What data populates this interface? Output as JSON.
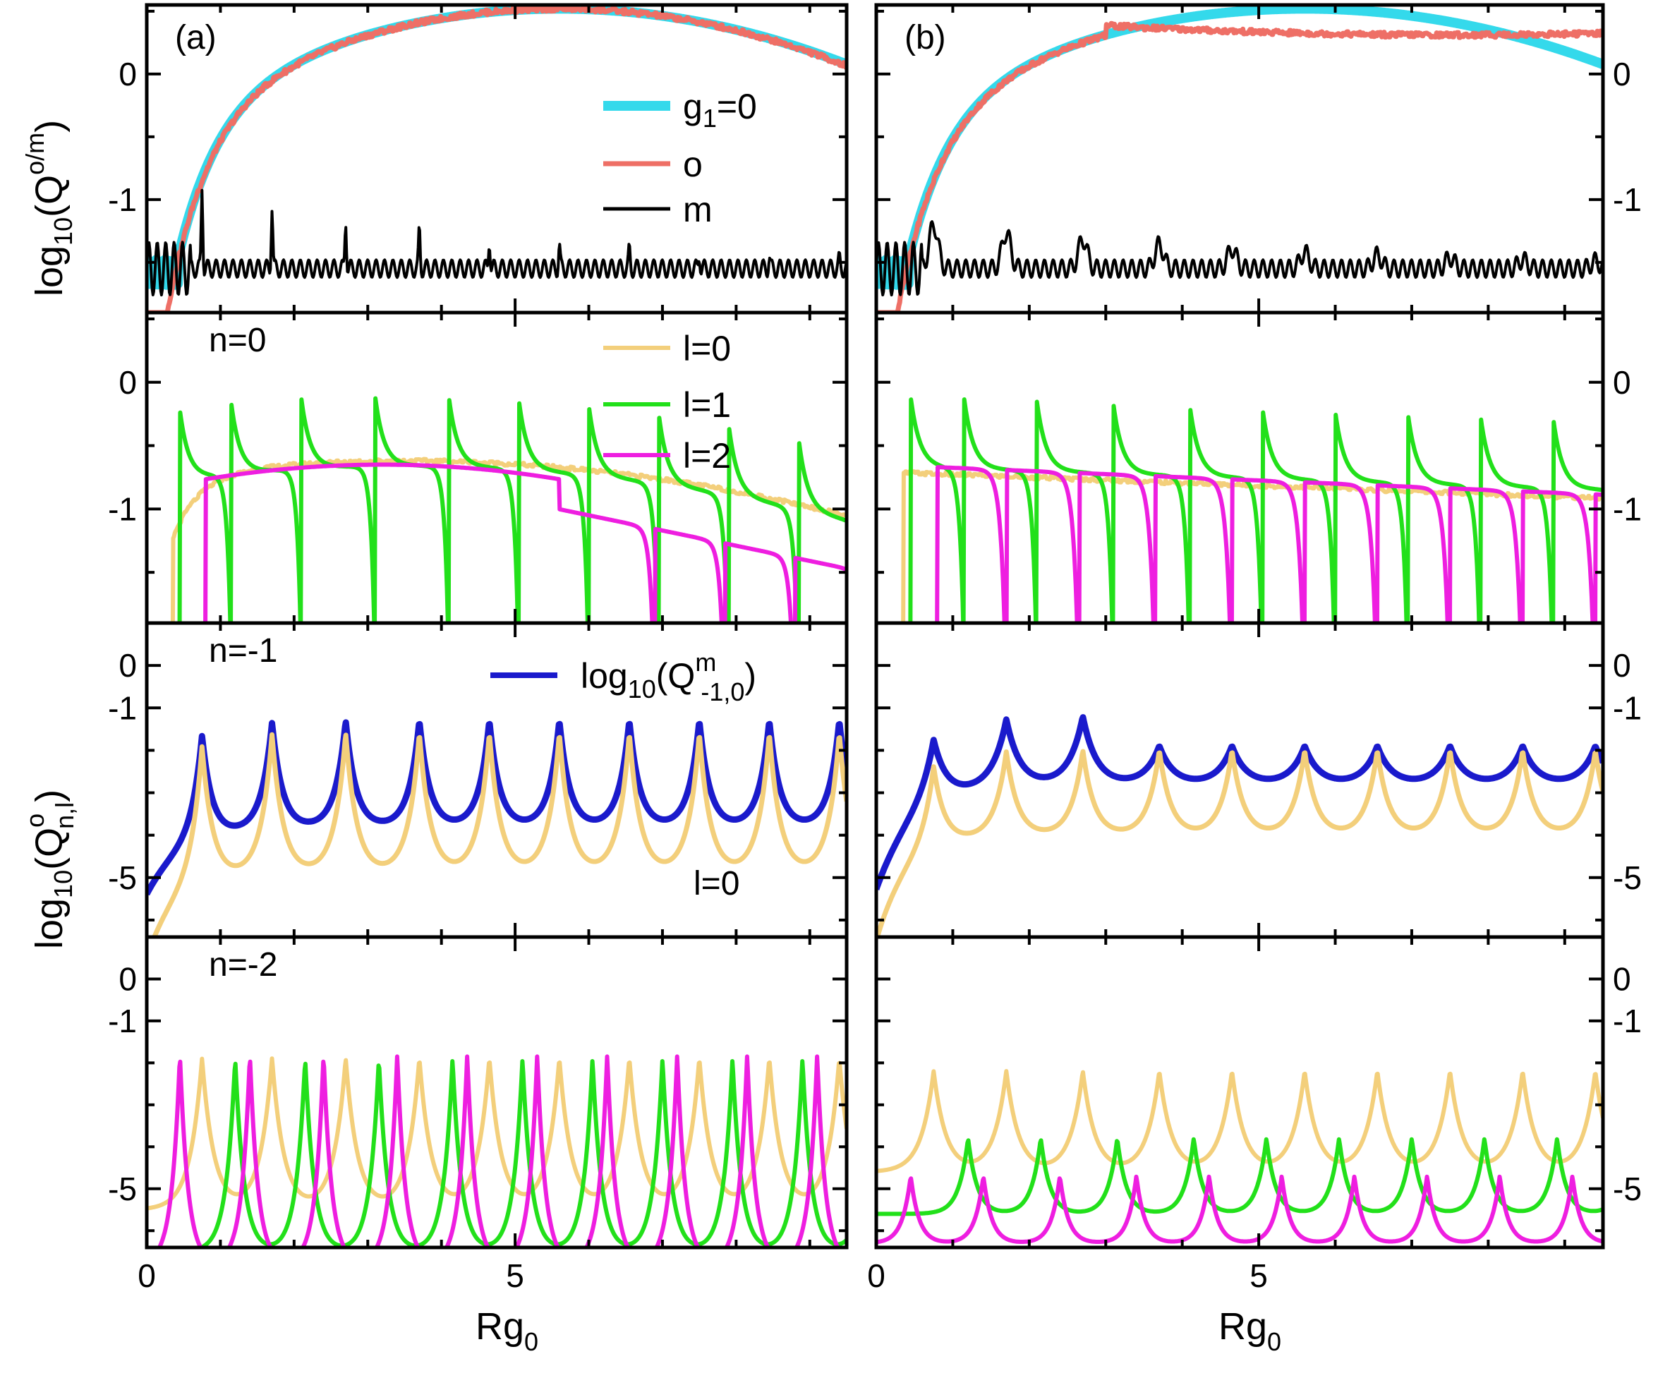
{
  "chart_data": {
    "type": "line",
    "columns": [
      {
        "label": "(a)",
        "xlabel_main": "Rg",
        "xlabel_sub": "0"
      },
      {
        "label": "(b)",
        "xlabel_main": "Rg",
        "xlabel_sub": "0"
      }
    ],
    "xlim": [
      0,
      9.5
    ],
    "x_ticks": [
      0,
      5
    ],
    "rows": [
      {
        "key": "row1",
        "ylim": [
          -1.9,
          0.55
        ],
        "y_ticks": [
          0,
          -1
        ],
        "y_tick_labels": [
          "0",
          "-1"
        ],
        "note": "",
        "legend": [
          "g1=0",
          "o",
          "m"
        ]
      },
      {
        "key": "row2",
        "ylim": [
          -1.9,
          0.55
        ],
        "y_ticks": [
          0,
          -1
        ],
        "y_tick_labels": [
          "0",
          "-1"
        ],
        "note": "n=0",
        "legend": [
          "l=0",
          "l=1",
          "l=2"
        ]
      },
      {
        "key": "row3",
        "ylim": [
          -6.4,
          1.0
        ],
        "y_ticks": [
          0,
          -1,
          -5
        ],
        "y_tick_labels": [
          "0",
          "-1",
          "-5"
        ],
        "note": "n=-1",
        "note2": "l=0"
      },
      {
        "key": "row4",
        "ylim": [
          -6.4,
          1.0
        ],
        "y_ticks": [
          0,
          -1,
          -5
        ],
        "y_tick_labels": [
          "0",
          "-1",
          "-5"
        ],
        "note": "n=-2"
      }
    ],
    "legend_labels": {
      "g1": "g",
      "g1_sub": "1",
      "g1_tail": "=0",
      "o": "o",
      "m": "m",
      "l0": "l=0",
      "l1": "l=1",
      "l2": "l=2",
      "qm_main": "log",
      "qm_sub": "10",
      "qm_Q": "(Q",
      "qm_sup": "m",
      "qm_sub2": "-1,0",
      "qm_end": ")"
    },
    "ylabels": {
      "top_main": "log",
      "top_sub": "10",
      "top_Q": "(Q",
      "top_sup": "o/m",
      "top_end": ")",
      "bot_main": "log",
      "bot_sub": "10",
      "bot_Q": "(Q",
      "bot_sup": "o",
      "bot_sub2": "n,l",
      "bot_end": ")"
    },
    "series": [
      {
        "key": "g1",
        "color": "#34d9eb",
        "label": "g1=0",
        "panels": [
          "row1"
        ]
      },
      {
        "key": "o",
        "color": "#ee6f66",
        "label": "o",
        "panels": [
          "row1"
        ]
      },
      {
        "key": "m",
        "color": "#000000",
        "label": "m",
        "panels": [
          "row1"
        ]
      },
      {
        "key": "l0",
        "color": "#f3cf7b",
        "label": "l=0",
        "panels": [
          "row2",
          "row3",
          "row4"
        ]
      },
      {
        "key": "l1",
        "color": "#22e01a",
        "label": "l=1",
        "panels": [
          "row2",
          "row4"
        ]
      },
      {
        "key": "l2",
        "color": "#ee1ee0",
        "label": "l=2",
        "panels": [
          "row2",
          "row4"
        ]
      },
      {
        "key": "qm",
        "color": "#1a1acc",
        "label": "log10(Q^m_-1,0)",
        "panels": [
          "row3"
        ]
      }
    ],
    "resonance_x": [
      0.75,
      1.7,
      2.7,
      3.7,
      4.65,
      5.6,
      6.55,
      7.5,
      8.45,
      9.4
    ]
  }
}
